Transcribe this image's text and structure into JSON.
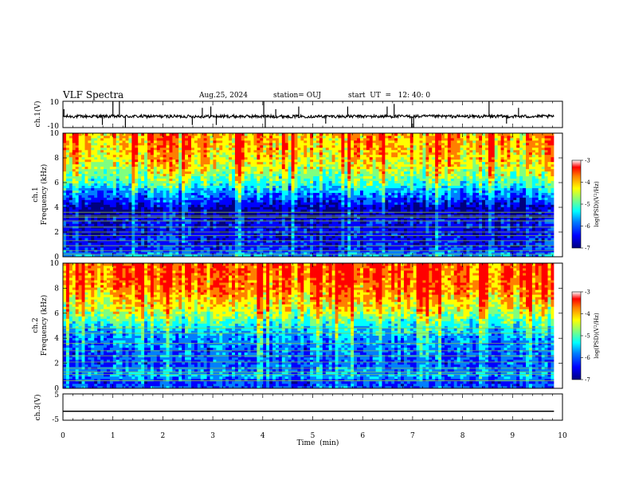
{
  "header": {
    "title": "VLF Spectra",
    "date": "Aug.25, 2024",
    "station": "station= OUJ",
    "start": "start  UT  =   12: 40: 0"
  },
  "colors": {
    "c0": "#00007f",
    "c1": "#0000ff",
    "c2": "#007fff",
    "c3": "#00ffff",
    "c4": "#7fff7f",
    "c5": "#ffff00",
    "c6": "#ff7f00",
    "c7": "#ff0000"
  },
  "chart_data": [
    {
      "type": "line",
      "name": "ch1-waveform",
      "ylabel": "ch.1(V)",
      "ylim": [
        -10,
        10
      ],
      "yticks": [
        "10",
        "-10"
      ],
      "xlim": [
        0,
        10
      ],
      "baseline": -1.5,
      "spikes": [
        {
          "t": 0.02,
          "v": 4
        },
        {
          "t": 0.79,
          "v": -8
        },
        {
          "t": 1.0,
          "v": 10
        },
        {
          "t": 1.13,
          "v": 10
        },
        {
          "t": 1.25,
          "v": -10
        },
        {
          "t": 2.59,
          "v": -8
        },
        {
          "t": 2.79,
          "v": 5
        },
        {
          "t": 2.96,
          "v": 6
        },
        {
          "t": 3.07,
          "v": -8
        },
        {
          "t": 4.02,
          "v": 10
        },
        {
          "t": 4.05,
          "v": -10
        },
        {
          "t": 4.26,
          "v": 4
        },
        {
          "t": 4.72,
          "v": 6
        },
        {
          "t": 5.26,
          "v": -7
        },
        {
          "t": 5.7,
          "v": 6
        },
        {
          "t": 6.49,
          "v": 6
        },
        {
          "t": 6.63,
          "v": 8
        },
        {
          "t": 6.98,
          "v": -10
        },
        {
          "t": 7.02,
          "v": -10
        },
        {
          "t": 8.53,
          "v": 10
        },
        {
          "t": 8.88,
          "v": -7
        },
        {
          "t": 9.12,
          "v": 5
        }
      ]
    },
    {
      "type": "heatmap",
      "name": "ch1-spectrogram",
      "ylabel": "ch.1\nFrequency  (kHz)",
      "xlim": [
        0,
        9.83
      ],
      "ylim": [
        0,
        10
      ],
      "yticks": [
        "0",
        "2",
        "4",
        "6",
        "8",
        "10"
      ],
      "colorbar": {
        "label": "log(PSD)(V²/Hz)",
        "range": [
          -7,
          -3
        ],
        "ticks": [
          "-3",
          "-4",
          "-5",
          "-6",
          "-7"
        ]
      },
      "profile": [
        {
          "f": 0.0,
          "z": -5.6
        },
        {
          "f": 0.5,
          "z": -6.2
        },
        {
          "f": 1.0,
          "z": -6.4
        },
        {
          "f": 2.0,
          "z": -6.5
        },
        {
          "f": 3.0,
          "z": -6.5
        },
        {
          "f": 3.5,
          "z": -6.8
        },
        {
          "f": 4.0,
          "z": -6.8
        },
        {
          "f": 4.5,
          "z": -6.3
        },
        {
          "f": 5.0,
          "z": -5.9
        },
        {
          "f": 5.5,
          "z": -5.5
        },
        {
          "f": 6.0,
          "z": -5.0
        },
        {
          "f": 7.0,
          "z": -4.4
        },
        {
          "f": 8.0,
          "z": -4.0
        },
        {
          "f": 9.0,
          "z": -3.8
        },
        {
          "f": 10.0,
          "z": -3.7
        }
      ],
      "lines_khz": [
        0.2,
        0.5,
        0.9,
        1.3,
        1.7,
        2.0,
        2.4,
        2.9,
        3.2,
        3.3,
        3.6
      ]
    },
    {
      "type": "heatmap",
      "name": "ch2-spectrogram",
      "ylabel": "ch.2\nFrequency  (kHz)",
      "xlim": [
        0,
        9.83
      ],
      "ylim": [
        0,
        10
      ],
      "yticks": [
        "0",
        "2",
        "4",
        "6",
        "8",
        "10"
      ],
      "colorbar": {
        "label": "log(PSD)(V²/Hz)",
        "range": [
          -7,
          -3
        ],
        "ticks": [
          "-3",
          "-4",
          "-5",
          "-6",
          "-7"
        ]
      },
      "profile": [
        {
          "f": 0.0,
          "z": -6.0
        },
        {
          "f": 0.5,
          "z": -6.3
        },
        {
          "f": 1.0,
          "z": -5.7
        },
        {
          "f": 2.0,
          "z": -6.1
        },
        {
          "f": 3.0,
          "z": -6.0
        },
        {
          "f": 4.0,
          "z": -5.8
        },
        {
          "f": 5.0,
          "z": -5.3
        },
        {
          "f": 5.5,
          "z": -4.9
        },
        {
          "f": 6.0,
          "z": -4.5
        },
        {
          "f": 7.0,
          "z": -4.0
        },
        {
          "f": 8.0,
          "z": -3.6
        },
        {
          "f": 9.0,
          "z": -3.4
        },
        {
          "f": 10.0,
          "z": -3.4
        }
      ],
      "lines_khz": [
        0.6,
        1.1,
        1.3,
        1.6,
        2.1,
        2.6,
        3.0,
        3.6,
        4.4,
        4.8
      ]
    },
    {
      "type": "line",
      "name": "ch3-waveform",
      "ylabel": "ch.3(V)",
      "ylim": [
        -5,
        5
      ],
      "yticks": [
        "5",
        "-5"
      ],
      "xlim": [
        0,
        9.83
      ],
      "values_const": -1.6
    }
  ],
  "xaxis": {
    "label": "Time  (min)",
    "ticks": [
      "0",
      "1",
      "2",
      "3",
      "4",
      "5",
      "6",
      "7",
      "8",
      "9",
      "10"
    ]
  }
}
